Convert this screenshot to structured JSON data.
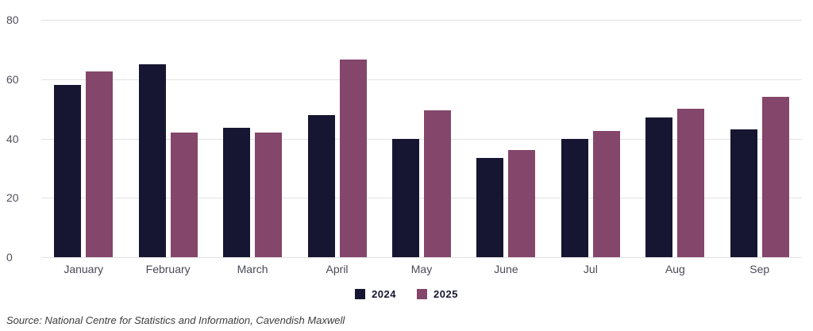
{
  "chart_data": {
    "type": "bar",
    "title": "",
    "xlabel": "",
    "ylabel": "",
    "categories": [
      "January",
      "February",
      "March",
      "April",
      "May",
      "June",
      "Jul",
      "Aug",
      "Sep"
    ],
    "series": [
      {
        "name": "2024",
        "color": "#161632",
        "values": [
          58,
          65,
          43.5,
          48,
          40,
          33.5,
          40,
          47,
          43
        ]
      },
      {
        "name": "2025",
        "color": "#84466A",
        "values": [
          62.5,
          42,
          42,
          66.5,
          49.5,
          36,
          42.5,
          50,
          54
        ]
      }
    ],
    "ylim": [
      0,
      80
    ],
    "yticks": [
      0,
      20,
      40,
      60,
      80
    ],
    "grid": true,
    "legend_position": "bottom"
  },
  "source": "Source: National Centre for Statistics and Information, Cavendish Maxwell",
  "colors": {
    "series_2024": "#161632",
    "series_2025": "#84466A",
    "gridline": "#e2e2e2",
    "tick_label": "#50505e",
    "axis_label": "#4a4a58",
    "legend_text": "#161632",
    "source_text": "#3c3c3c",
    "background": "#ffffff"
  }
}
